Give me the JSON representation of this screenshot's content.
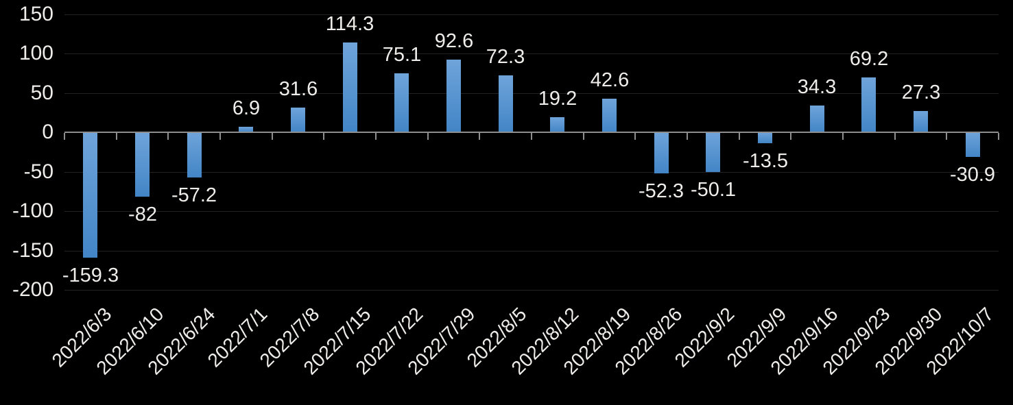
{
  "chart_data": {
    "type": "bar",
    "title": "",
    "xlabel": "",
    "ylabel": "",
    "categories": [
      "2022/6/3",
      "2022/6/10",
      "2022/6/24",
      "2022/7/1",
      "2022/7/8",
      "2022/7/15",
      "2022/7/22",
      "2022/7/29",
      "2022/8/5",
      "2022/8/12",
      "2022/8/19",
      "2022/8/26",
      "2022/9/2",
      "2022/9/9",
      "2022/9/16",
      "2022/9/23",
      "2022/9/30",
      "2022/10/7"
    ],
    "values": [
      -159.3,
      -82,
      -57.2,
      6.9,
      31.6,
      114.3,
      75.1,
      92.6,
      72.3,
      19.2,
      42.6,
      -52.3,
      -50.1,
      -13.5,
      34.3,
      69.2,
      27.3,
      -30.9
    ],
    "value_labels": [
      "-159.3",
      "-82",
      "-57.2",
      "6.9",
      "31.6",
      "114.3",
      "75.1",
      "92.6",
      "72.3",
      "19.2",
      "42.6",
      "-52.3",
      "-50.1",
      "-13.5",
      "34.3",
      "69.2",
      "27.3",
      "-30.9"
    ],
    "y_ticks": [
      150,
      100,
      50,
      0,
      -50,
      -100,
      -150,
      -200
    ],
    "ylim": [
      -200,
      150
    ],
    "grid": true,
    "legend": false,
    "data_labels": true,
    "x_label_rotation_deg": 45,
    "colors": {
      "background": "#000000",
      "bar_gradient_top": "#6FA4DA",
      "bar_gradient_bottom": "#4285C6",
      "axis_line": "#8E8E8E",
      "gridline": "#232323",
      "text": "#EFEDEA"
    }
  }
}
